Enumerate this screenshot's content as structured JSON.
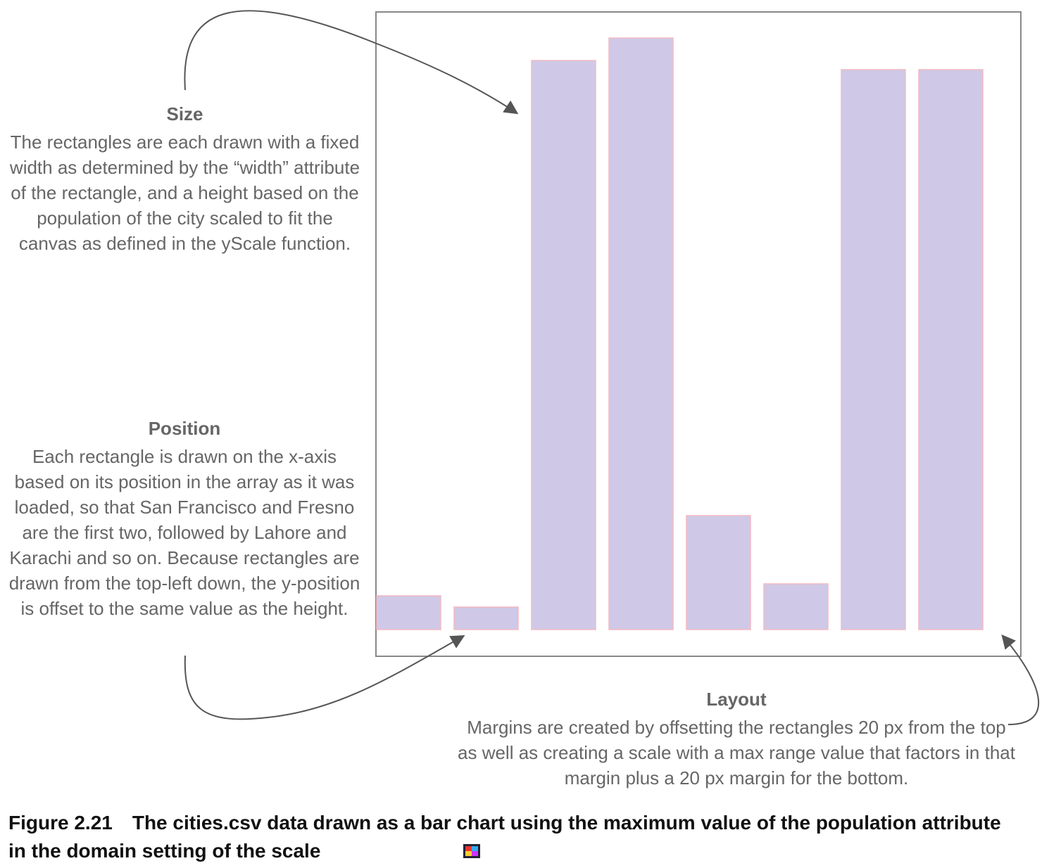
{
  "chart_data": {
    "type": "bar",
    "categories": [
      null,
      null,
      null,
      null,
      null,
      null,
      null,
      null
    ],
    "values": [
      48,
      32,
      809,
      841,
      162,
      65,
      796,
      796
    ],
    "ylim": [
      0,
      878
    ],
    "color": "#cfc9e7",
    "edge_color": "#f2b9c2",
    "annotations": [
      {
        "title": "Size",
        "text": "The rectangles are each drawn with a fixed width as determined by the “width” attribute of the rectangle, and a height based on the population of the city scaled to fit the canvas as defined in the yScale function."
      },
      {
        "title": "Position",
        "text": "Each rectangle is drawn on the x-axis based on its position in the array as it was loaded, so that San Francisco and Fresno are the first two, followed by Lahore and Karachi and so on. Because rectangles are drawn from the top-left down, the y-position is offset to the same value as the height."
      },
      {
        "title": "Layout",
        "text": "Margins are created by offsetting the rectangles 20 px from the top as well as creating a scale with a max range value that factors in that margin plus a 20 px margin for the bottom."
      }
    ],
    "caption": {
      "label": "Figure 2.21",
      "text": "The cities.csv data drawn as a bar chart using the maximum value of the population attribute in the domain setting of the scale"
    }
  }
}
